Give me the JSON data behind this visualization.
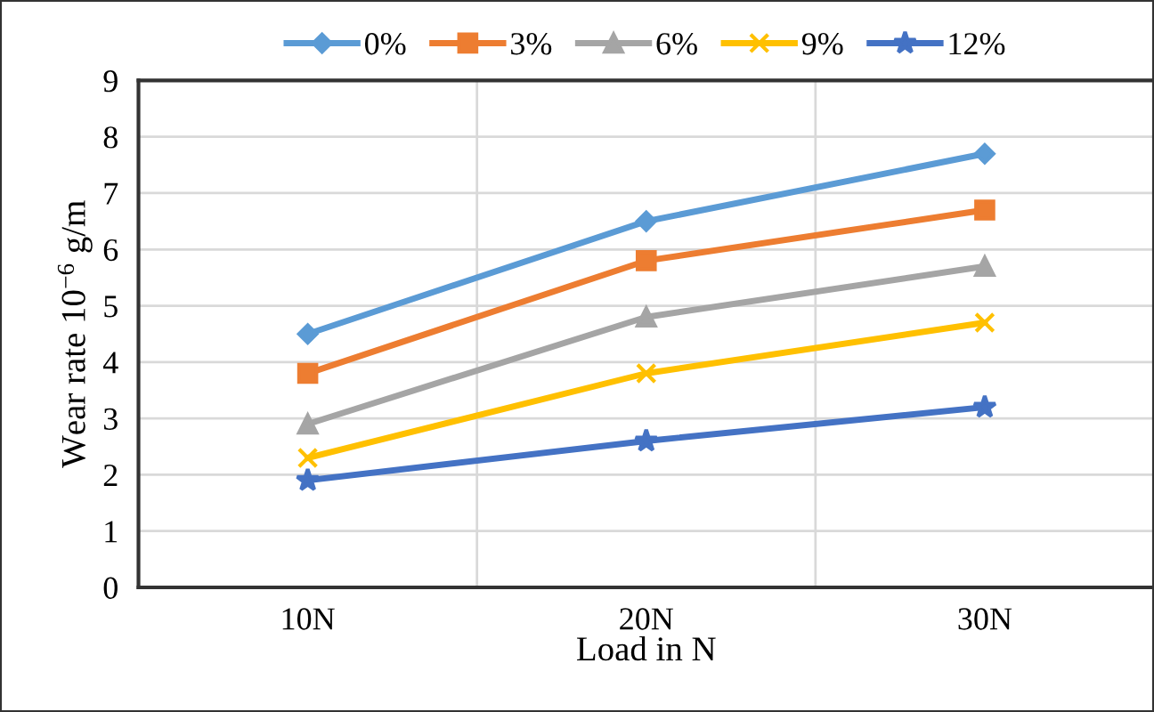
{
  "chart_data": {
    "type": "line",
    "xlabel": "Load in N",
    "ylabel": "Wear rate 10$^{−6}$ g/m",
    "categories": [
      "10N",
      "20N",
      "30N"
    ],
    "series": [
      {
        "name": "0%",
        "color": "#5b9bd5",
        "marker": "diamond",
        "values": [
          4.5,
          6.5,
          7.7
        ]
      },
      {
        "name": "3%",
        "color": "#ed7d31",
        "marker": "square",
        "values": [
          3.8,
          5.8,
          6.7
        ]
      },
      {
        "name": "6%",
        "color": "#a5a5a5",
        "marker": "triangle",
        "values": [
          2.9,
          4.8,
          5.7
        ]
      },
      {
        "name": "9%",
        "color": "#ffc000",
        "marker": "cross",
        "values": [
          2.3,
          3.8,
          4.7
        ]
      },
      {
        "name": "12%",
        "color": "#4472c4",
        "marker": "star",
        "values": [
          1.9,
          2.6,
          3.2
        ]
      }
    ],
    "ylim": [
      0,
      9
    ],
    "yticks": [
      0,
      1,
      2,
      3,
      4,
      5,
      6,
      7,
      8,
      9
    ],
    "grid": true,
    "legend": "top",
    "line_style": "solid"
  }
}
